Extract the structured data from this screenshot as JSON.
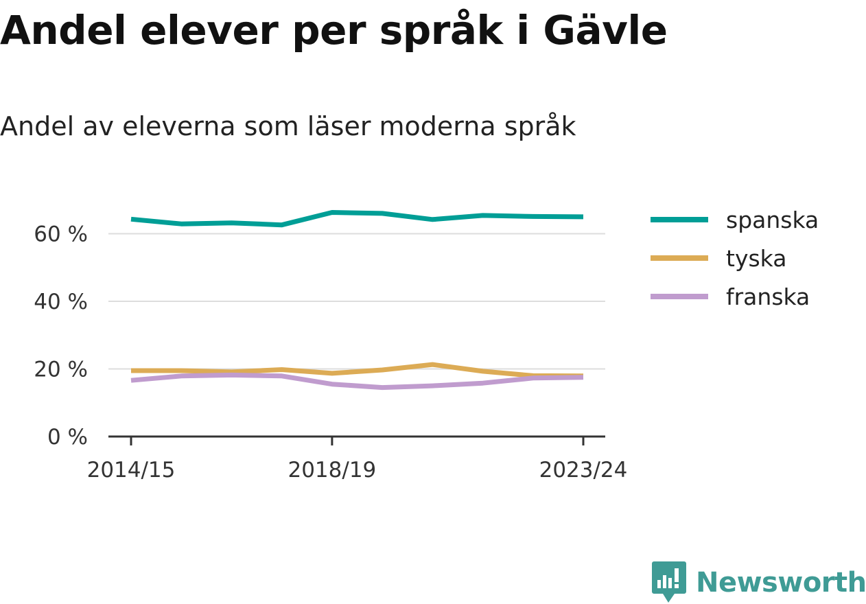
{
  "title": "Andel elever per språk i Gävle",
  "subtitle": "Andel av eleverna som läser moderna språk",
  "brand": {
    "name": "Newsworthy",
    "color": "#3f9b95"
  },
  "chart_data": {
    "type": "line",
    "x": [
      "2014/15",
      "2015/16",
      "2016/17",
      "2017/18",
      "2018/19",
      "2019/20",
      "2020/21",
      "2021/22",
      "2022/23",
      "2023/24"
    ],
    "xticks": [
      "2014/15",
      "2018/19",
      "2023/24"
    ],
    "yticks": [
      0,
      20,
      40,
      60
    ],
    "ytick_labels": [
      "0 %",
      "20 %",
      "40 %",
      "60 %"
    ],
    "ylim": [
      0,
      70
    ],
    "grid": true,
    "legend_position": "right",
    "series": [
      {
        "name": "spanska",
        "color": "#009e96",
        "values": [
          64.3,
          62.9,
          63.2,
          62.6,
          66.3,
          66.0,
          64.2,
          65.4,
          65.1,
          65.0
        ]
      },
      {
        "name": "tyska",
        "color": "#dcab55",
        "values": [
          19.5,
          19.5,
          19.1,
          19.8,
          18.7,
          19.7,
          21.3,
          19.3,
          18.0,
          17.9
        ]
      },
      {
        "name": "franska",
        "color": "#c09cce",
        "values": [
          16.6,
          17.9,
          18.2,
          17.9,
          15.5,
          14.5,
          15.0,
          15.8,
          17.3,
          17.5
        ]
      }
    ]
  }
}
